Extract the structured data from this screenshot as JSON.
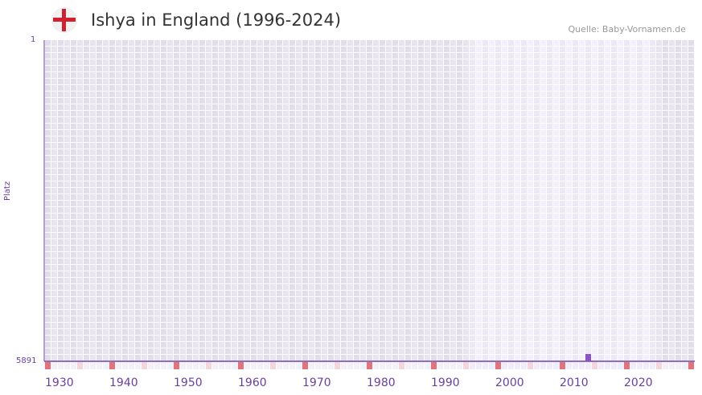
{
  "header": {
    "title": "Ishya in England (1996-2024)",
    "source": "Quelle: Baby-Vornamen.de",
    "flag_icon": "england-flag-icon"
  },
  "chart_data": {
    "type": "bar",
    "title": "Ishya in England (1996-2024)",
    "ylabel": "Platz",
    "y_ticks": [
      "1",
      "5891"
    ],
    "ylim": [
      5891,
      1
    ],
    "x_range": [
      1930,
      2030
    ],
    "highlight_range": [
      1996,
      2024
    ],
    "x_ticks": [
      "1930",
      "1940",
      "1950",
      "1960",
      "1970",
      "1980",
      "1990",
      "2000",
      "2010",
      "2020"
    ],
    "points": [
      {
        "year": 2014,
        "rank": 5891
      }
    ],
    "colors": {
      "bar": "#8e4fcf",
      "axis": "#6a3fa0",
      "decade_marker": "#e8707a",
      "half_decade_marker": "#f4d6de"
    }
  }
}
